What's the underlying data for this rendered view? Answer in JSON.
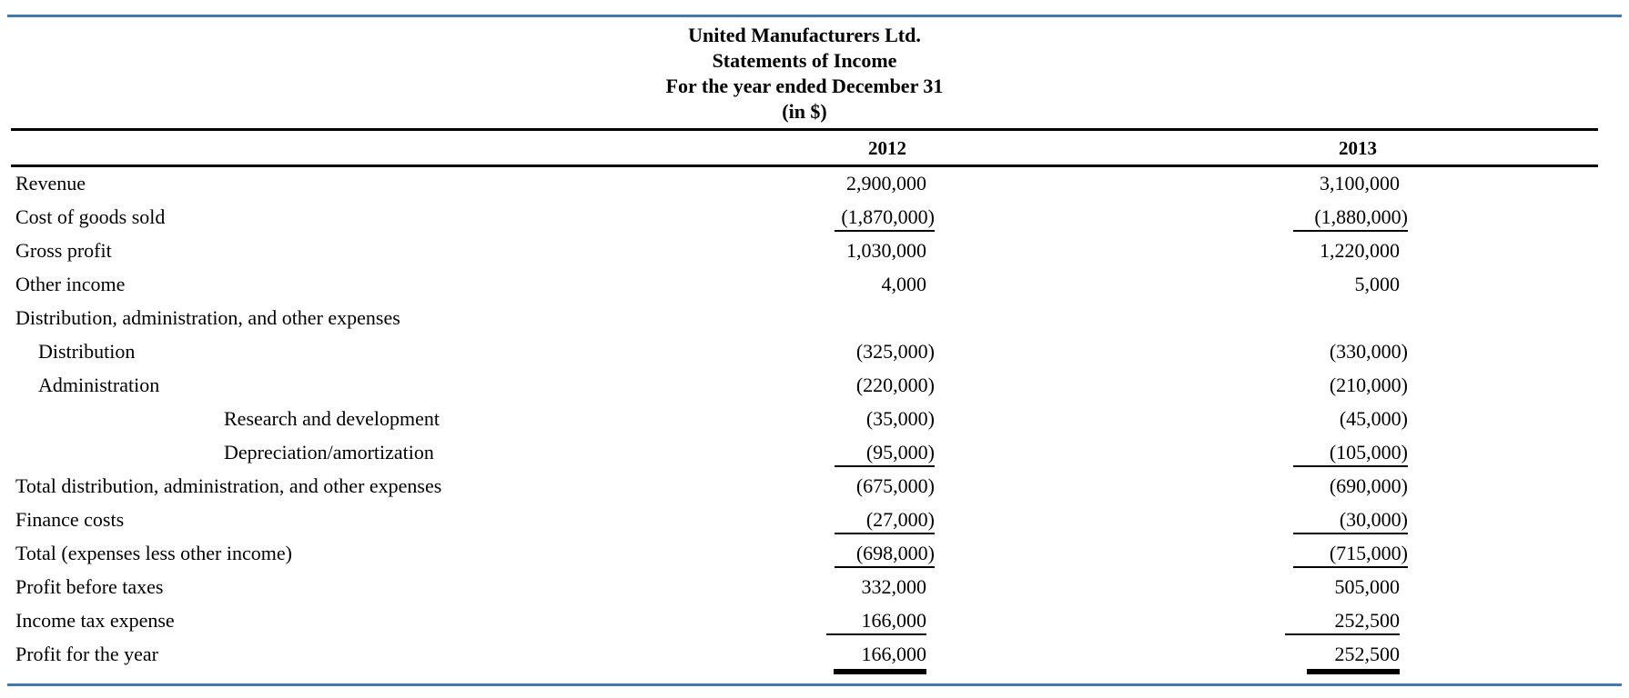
{
  "header": {
    "company": "United Manufacturers Ltd.",
    "statement": "Statements of Income",
    "period": "For the year ended December 31",
    "currency": "(in $)"
  },
  "columns": [
    "2012",
    "2013"
  ],
  "rows": [
    {
      "label": "Revenue",
      "y2012": "2,900,000",
      "y2013": "3,100,000"
    },
    {
      "label": "Cost of goods sold",
      "y2012": "(1,870,000)",
      "y2013": "(1,880,000)"
    },
    {
      "label": "Gross profit",
      "y2012": "1,030,000",
      "y2013": "1,220,000"
    },
    {
      "label": "Other income",
      "y2012": "4,000",
      "y2013": "5,000"
    },
    {
      "label": "Distribution, administration, and other expenses",
      "y2012": "",
      "y2013": ""
    },
    {
      "label": "Distribution",
      "y2012": "(325,000)",
      "y2013": "(330,000)"
    },
    {
      "label": "Administration",
      "y2012": "(220,000)",
      "y2013": "(210,000)"
    },
    {
      "label": "Research and development",
      "y2012": "(35,000)",
      "y2013": "(45,000)"
    },
    {
      "label": "Depreciation/amortization",
      "y2012": "(95,000)",
      "y2013": "(105,000)"
    },
    {
      "label": "Total distribution, administration, and other expenses",
      "y2012": "(675,000)",
      "y2013": "(690,000)"
    },
    {
      "label": "Finance costs",
      "y2012": "(27,000)",
      "y2013": "(30,000)"
    },
    {
      "label": "Total (expenses less other income)",
      "y2012": "(698,000)",
      "y2013": "(715,000)"
    },
    {
      "label": "Profit before taxes",
      "y2012": "332,000",
      "y2013": "505,000"
    },
    {
      "label": "Income tax expense",
      "y2012": "166,000",
      "y2013": "252,500"
    },
    {
      "label": "Profit for the year",
      "y2012": "166,000",
      "y2013": "252,500"
    }
  ],
  "colors": {
    "accent_rule": "#3b79bb",
    "text": "#000000"
  }
}
